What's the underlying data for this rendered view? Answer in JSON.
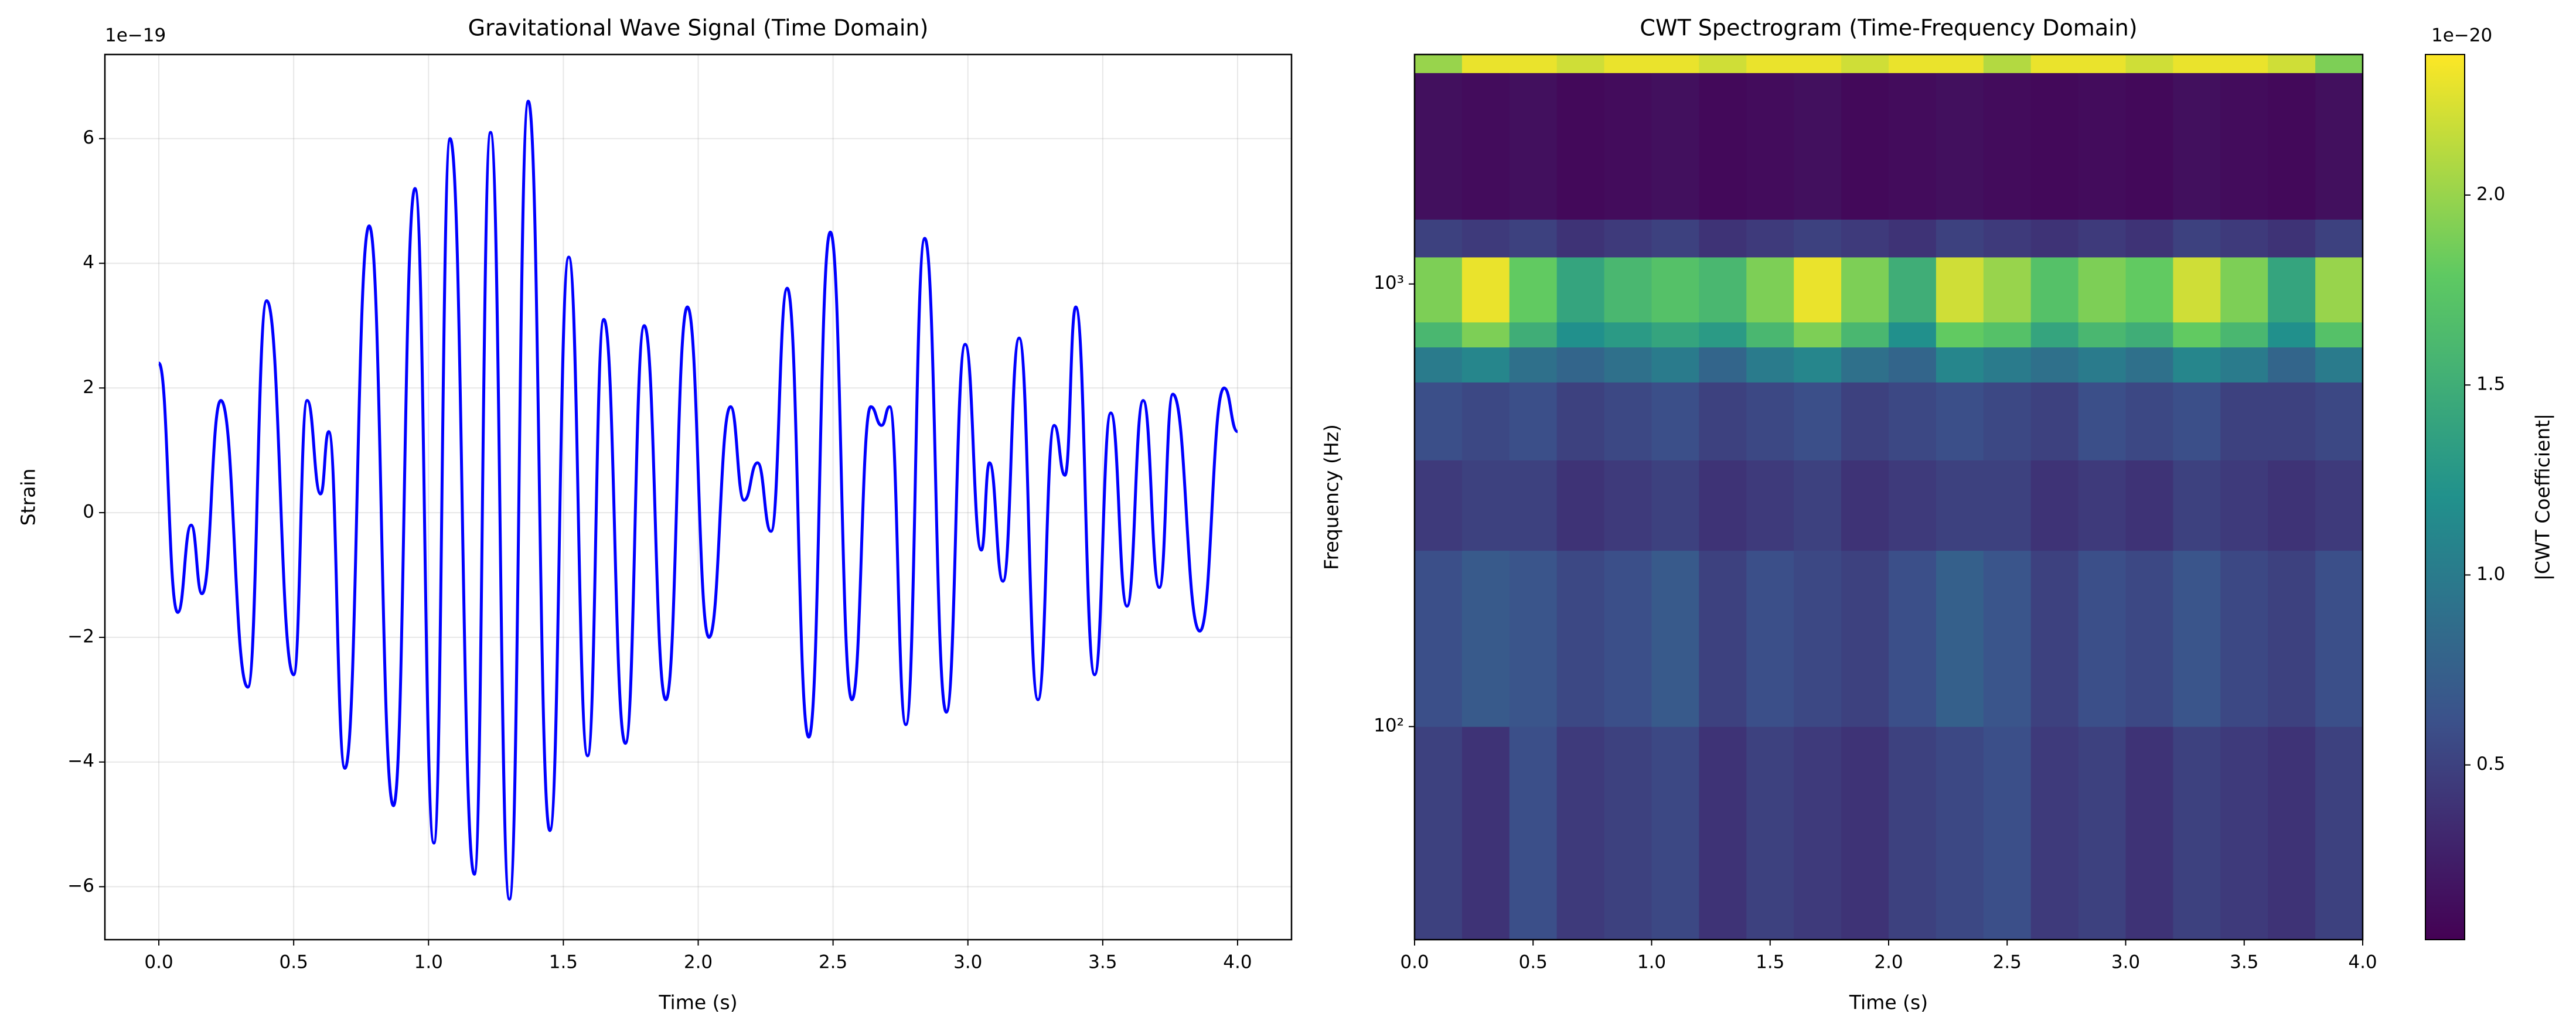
{
  "chart_data": [
    {
      "type": "line",
      "title": "Gravitational Wave Signal (Time Domain)",
      "xlabel": "Time (s)",
      "ylabel": "Strain",
      "y_offset_label": "1e−19",
      "x": [
        0.0,
        0.07,
        0.12,
        0.16,
        0.23,
        0.33,
        0.4,
        0.5,
        0.55,
        0.6,
        0.63,
        0.69,
        0.78,
        0.87,
        0.95,
        1.02,
        1.08,
        1.17,
        1.23,
        1.3,
        1.37,
        1.45,
        1.52,
        1.59,
        1.65,
        1.73,
        1.8,
        1.88,
        1.96,
        2.04,
        2.12,
        2.17,
        2.22,
        2.27,
        2.33,
        2.41,
        2.49,
        2.57,
        2.64,
        2.68,
        2.71,
        2.77,
        2.84,
        2.92,
        2.99,
        3.05,
        3.08,
        3.13,
        3.19,
        3.26,
        3.32,
        3.36,
        3.4,
        3.47,
        3.53,
        3.59,
        3.65,
        3.71,
        3.76,
        3.86,
        3.95,
        4.0
      ],
      "values": [
        2.4,
        -1.6,
        -0.2,
        -1.3,
        1.8,
        -2.8,
        3.4,
        -2.6,
        1.8,
        0.3,
        1.3,
        -4.1,
        4.6,
        -4.7,
        5.2,
        -5.3,
        6.0,
        -5.8,
        6.1,
        -6.2,
        6.6,
        -5.1,
        4.1,
        -3.9,
        3.1,
        -3.7,
        3.0,
        -3.0,
        3.3,
        -2.0,
        1.7,
        0.2,
        0.8,
        -0.3,
        3.6,
        -3.6,
        4.5,
        -3.0,
        1.7,
        1.4,
        1.7,
        -3.4,
        4.4,
        -3.2,
        2.7,
        -0.6,
        0.8,
        -1.1,
        2.8,
        -3.0,
        1.4,
        0.6,
        3.3,
        -2.6,
        1.6,
        -1.5,
        1.8,
        -1.2,
        1.9,
        -1.9,
        2.0,
        1.3
      ],
      "color": "#0000ff",
      "grid": true,
      "xlim": [
        -0.2,
        4.2
      ],
      "xticks": [
        {
          "value": 0,
          "label": "0.0"
        },
        0.5,
        {
          "value": 1,
          "label": "1.0"
        },
        1.5,
        {
          "value": 2,
          "label": "2.0"
        },
        2.5,
        {
          "value": 3,
          "label": "3.0"
        },
        3.5,
        {
          "value": 4,
          "label": "4.0"
        }
      ],
      "ylim": [
        -6.85,
        7.35
      ],
      "yticks": [
        {
          "value": -6,
          "label": "−6"
        },
        {
          "value": -4,
          "label": "−4"
        },
        {
          "value": -2,
          "label": "−2"
        },
        0,
        2,
        4,
        6
      ]
    },
    {
      "type": "heatmap",
      "title": "CWT Spectrogram (Time-Frequency Domain)",
      "xlabel": "Time (s)",
      "ylabel": "Frequency (Hz)",
      "log_y": true,
      "colormap": "viridis",
      "colorbar_label": "|CWT Coefficient|",
      "colorbar_offset_label": "1e−20",
      "x_edges": [
        0,
        0.2,
        0.4,
        0.6,
        0.8,
        1.0,
        1.2,
        1.4,
        1.6,
        1.8,
        2.0,
        2.2,
        2.4,
        2.6,
        2.8,
        3.0,
        3.2,
        3.4,
        3.6,
        3.8,
        4.0
      ],
      "y_edges": [
        33,
        100,
        250,
        400,
        600,
        720,
        820,
        1150,
        1400,
        3000,
        3300
      ],
      "z": [
        [
          0.5,
          0.4,
          0.6,
          0.45,
          0.5,
          0.55,
          0.4,
          0.5,
          0.45,
          0.4,
          0.5,
          0.55,
          0.6,
          0.45,
          0.5,
          0.4,
          0.5,
          0.45,
          0.4,
          0.5
        ],
        [
          0.6,
          0.7,
          0.65,
          0.55,
          0.6,
          0.7,
          0.5,
          0.6,
          0.55,
          0.5,
          0.6,
          0.75,
          0.65,
          0.5,
          0.6,
          0.55,
          0.65,
          0.55,
          0.5,
          0.6
        ],
        [
          0.45,
          0.5,
          0.5,
          0.4,
          0.45,
          0.5,
          0.4,
          0.45,
          0.5,
          0.4,
          0.45,
          0.5,
          0.5,
          0.4,
          0.45,
          0.4,
          0.5,
          0.45,
          0.4,
          0.45
        ],
        [
          0.6,
          0.55,
          0.6,
          0.5,
          0.55,
          0.6,
          0.5,
          0.55,
          0.6,
          0.5,
          0.55,
          0.6,
          0.55,
          0.5,
          0.6,
          0.55,
          0.6,
          0.5,
          0.5,
          0.55
        ],
        [
          1.0,
          1.1,
          0.9,
          0.8,
          0.9,
          1.0,
          0.8,
          1.0,
          1.1,
          0.9,
          0.8,
          1.1,
          1.0,
          0.9,
          1.0,
          0.9,
          1.1,
          1.0,
          0.8,
          1.0
        ],
        [
          1.6,
          1.9,
          1.5,
          1.2,
          1.3,
          1.4,
          1.3,
          1.6,
          1.9,
          1.6,
          1.2,
          1.8,
          1.7,
          1.4,
          1.6,
          1.5,
          1.8,
          1.6,
          1.2,
          1.7
        ],
        [
          1.9,
          2.3,
          1.8,
          1.4,
          1.6,
          1.7,
          1.6,
          1.9,
          2.3,
          1.9,
          1.5,
          2.2,
          2.0,
          1.7,
          1.9,
          1.8,
          2.2,
          1.9,
          1.4,
          2.0
        ],
        [
          0.5,
          0.45,
          0.5,
          0.4,
          0.45,
          0.5,
          0.4,
          0.45,
          0.5,
          0.45,
          0.4,
          0.5,
          0.45,
          0.4,
          0.45,
          0.4,
          0.5,
          0.45,
          0.4,
          0.5
        ],
        [
          0.15,
          0.12,
          0.15,
          0.1,
          0.12,
          0.15,
          0.1,
          0.12,
          0.15,
          0.1,
          0.12,
          0.15,
          0.12,
          0.1,
          0.12,
          0.1,
          0.15,
          0.12,
          0.1,
          0.15
        ],
        [
          2.0,
          2.3,
          2.3,
          2.2,
          2.3,
          2.3,
          2.2,
          2.3,
          2.3,
          2.2,
          2.3,
          2.3,
          2.1,
          2.3,
          2.3,
          2.2,
          2.3,
          2.3,
          2.2,
          1.9
        ]
      ],
      "clim": [
        0.04,
        2.37
      ],
      "cticks": [
        0.5,
        {
          "value": 1,
          "label": "1.0"
        },
        1.5,
        {
          "value": 2,
          "label": "2.0"
        }
      ],
      "xlim": [
        0,
        4
      ],
      "xticks": [
        {
          "value": 0,
          "label": "0.0"
        },
        0.5,
        {
          "value": 1,
          "label": "1.0"
        },
        1.5,
        {
          "value": 2,
          "label": "2.0"
        },
        2.5,
        {
          "value": 3,
          "label": "3.0"
        },
        3.5,
        {
          "value": 4,
          "label": "4.0"
        }
      ],
      "ylim": [
        33,
        3300
      ],
      "yticks": [
        {
          "value": 100,
          "label": "10²"
        },
        {
          "value": 1000,
          "label": "10³"
        }
      ]
    }
  ]
}
